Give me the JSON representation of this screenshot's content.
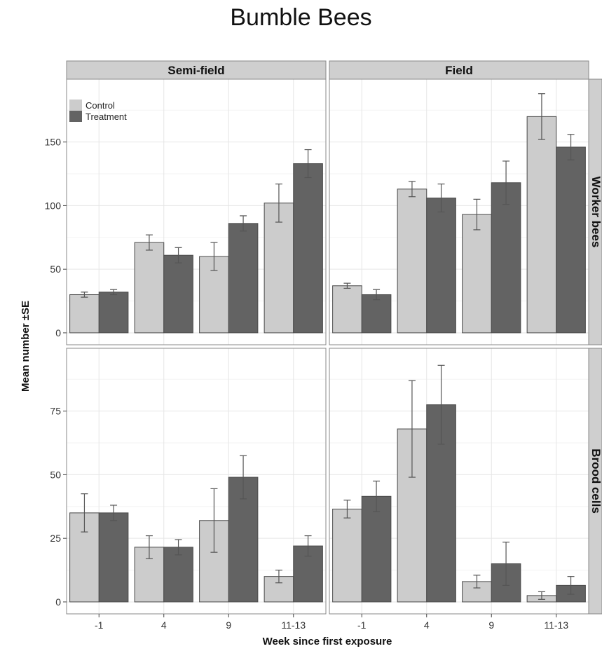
{
  "title": "Bumble Bees",
  "chart_data": {
    "type": "bar",
    "xlabel": "Week since first exposure",
    "ylabel": "Mean number ±SE",
    "categories": [
      "-1",
      "4",
      "9",
      "11-13"
    ],
    "columns": [
      "Semi-field",
      "Field"
    ],
    "rows": [
      "Worker bees",
      "Brood cells"
    ],
    "legend": {
      "placement": "top-left",
      "entries": [
        {
          "name": "Control",
          "color": "#cccccc"
        },
        {
          "name": "Treatment",
          "color": "#636363"
        }
      ]
    },
    "grid": true,
    "panels": [
      {
        "column": "Semi-field",
        "row": "Worker bees",
        "ylim": [
          0,
          190
        ],
        "yticks": [
          0,
          50,
          100,
          150
        ],
        "series": [
          {
            "name": "Control",
            "values": [
              30,
              71,
              60,
              102
            ],
            "se": [
              2,
              6,
              11,
              15
            ]
          },
          {
            "name": "Treatment",
            "values": [
              32,
              61,
              86,
              133
            ],
            "se": [
              2,
              6,
              6,
              11
            ]
          }
        ]
      },
      {
        "column": "Field",
        "row": "Worker bees",
        "ylim": [
          0,
          190
        ],
        "yticks": [
          0,
          50,
          100,
          150
        ],
        "series": [
          {
            "name": "Control",
            "values": [
              37,
              113,
              93,
              170
            ],
            "se": [
              2,
              6,
              12,
              18
            ]
          },
          {
            "name": "Treatment",
            "values": [
              30,
              106,
              118,
              146
            ],
            "se": [
              4,
              11,
              17,
              10
            ]
          }
        ]
      },
      {
        "column": "Semi-field",
        "row": "Brood cells",
        "ylim": [
          0,
          95
        ],
        "yticks": [
          0,
          25,
          50,
          75
        ],
        "series": [
          {
            "name": "Control",
            "values": [
              35,
              21.5,
              32,
              10
            ],
            "se": [
              7.5,
              4.5,
              12.5,
              2.5
            ]
          },
          {
            "name": "Treatment",
            "values": [
              35,
              21.5,
              49,
              22
            ],
            "se": [
              3,
              3,
              8.5,
              4
            ]
          }
        ]
      },
      {
        "column": "Field",
        "row": "Brood cells",
        "ylim": [
          0,
          95
        ],
        "yticks": [
          0,
          25,
          50,
          75
        ],
        "series": [
          {
            "name": "Control",
            "values": [
              36.5,
              68,
              8,
              2.5
            ],
            "se": [
              3.5,
              19,
              2.5,
              1.5
            ]
          },
          {
            "name": "Treatment",
            "values": [
              41.5,
              77.5,
              15,
              6.5
            ],
            "se": [
              6,
              15.5,
              8.5,
              3.5
            ]
          }
        ]
      }
    ]
  }
}
